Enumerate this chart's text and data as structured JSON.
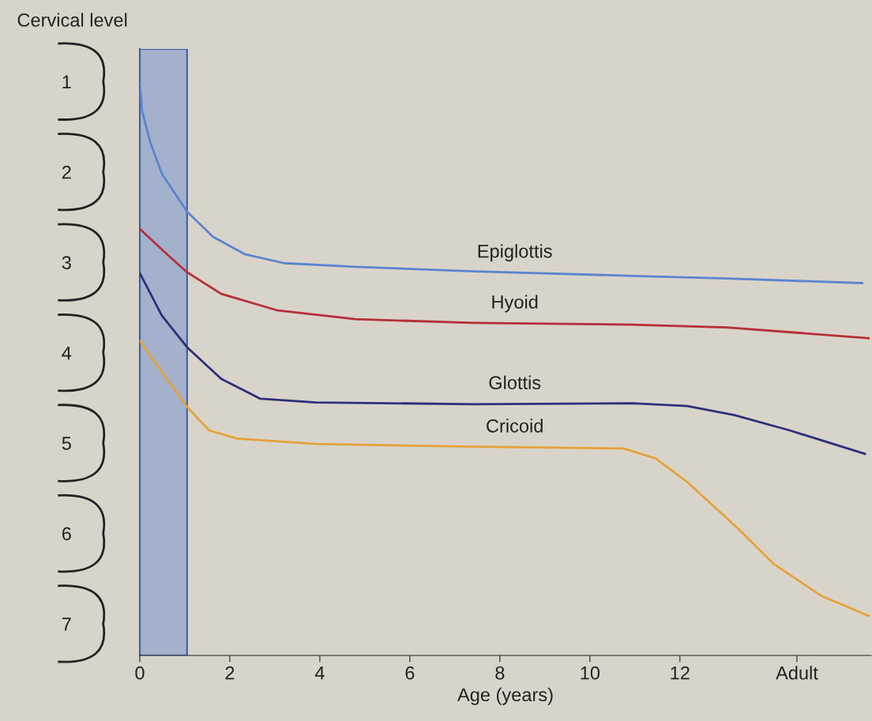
{
  "chart_data": {
    "type": "line",
    "ylabel": "Cervical level",
    "xlabel": "Age (years)",
    "xlim": [
      0,
      16.25
    ],
    "xticks": [
      0,
      2,
      4,
      6,
      8,
      10,
      12,
      {
        "value": 14.6,
        "label": "Adult"
      }
    ],
    "ylim": [
      7.35,
      0.64
    ],
    "yticks": [
      1,
      2,
      3,
      4,
      5,
      6,
      7
    ],
    "grid": false,
    "legend": false,
    "marker": "none",
    "line_style": "solid",
    "bands": [
      {
        "axis": "x",
        "from": 0,
        "to": 1.05,
        "color": "#a3b1cc"
      }
    ],
    "series": [
      {
        "name": "Epiglottis",
        "color": "#5b84d0",
        "x": [
          0,
          0.05,
          0.23,
          0.49,
          1.05,
          1.63,
          2.33,
          3.21,
          4.79,
          7.42,
          10.93,
          13.04,
          16.05
        ],
        "values": [
          1.02,
          1.32,
          1.67,
          2.02,
          2.44,
          2.72,
          2.91,
          3.01,
          3.05,
          3.1,
          3.15,
          3.18,
          3.23
        ]
      },
      {
        "name": "Hyoid",
        "color": "#b5303a",
        "x": [
          0,
          0.58,
          1.05,
          1.81,
          3.04,
          4.79,
          7.42,
          10.93,
          13.04,
          16.19
        ],
        "values": [
          2.63,
          2.9,
          3.11,
          3.35,
          3.53,
          3.63,
          3.67,
          3.69,
          3.72,
          3.84
        ]
      },
      {
        "name": "Glottis",
        "color": "#2e2f7a",
        "x": [
          0,
          0.49,
          1.05,
          1.81,
          2.68,
          3.91,
          7.42,
          10.93,
          12.16,
          13.21,
          14.44,
          16.11
        ],
        "values": [
          3.12,
          3.59,
          3.94,
          4.29,
          4.51,
          4.55,
          4.57,
          4.56,
          4.59,
          4.69,
          4.86,
          5.12
        ]
      },
      {
        "name": "Cricoid",
        "color": "#e5a23a",
        "x": [
          0,
          0.49,
          1.05,
          1.54,
          2.16,
          3.91,
          7.42,
          10.75,
          11.46,
          12.16,
          13.3,
          14.09,
          15.14,
          16.19
        ],
        "values": [
          3.87,
          4.21,
          4.6,
          4.86,
          4.95,
          5.01,
          5.04,
          5.06,
          5.17,
          5.43,
          5.95,
          6.34,
          6.69,
          6.91
        ]
      }
    ]
  }
}
